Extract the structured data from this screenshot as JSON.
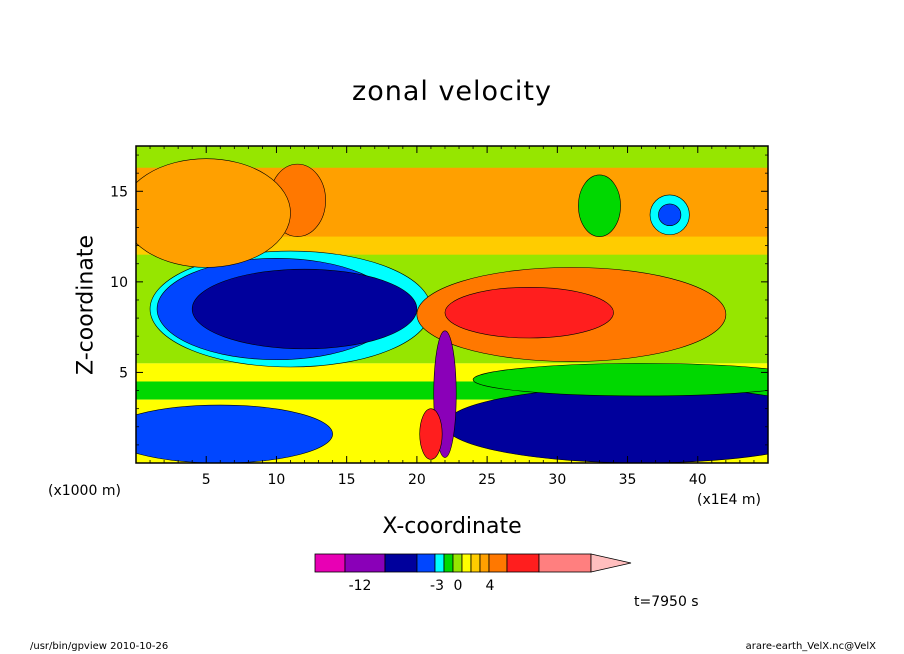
{
  "chart_data": {
    "type": "heatmap",
    "title": "zonal velocity",
    "xlabel": "X-coordinate",
    "ylabel": "Z-coordinate",
    "x_units": "(x1E4 m)",
    "y_units": "(x1000 m)",
    "xlim": [
      0,
      45
    ],
    "ylim": [
      0,
      17.5
    ],
    "x_ticks": [
      5,
      10,
      15,
      20,
      25,
      30,
      35,
      40
    ],
    "x_tick_labels": [
      "5",
      "10",
      "15",
      "20",
      "25",
      "30",
      "35",
      "40"
    ],
    "y_ticks": [
      5,
      10,
      15
    ],
    "y_tick_labels": [
      "5",
      "10",
      "15"
    ],
    "time_label": "t=7950 s",
    "colorbar": {
      "colors": [
        "#e800b4",
        "#8a00b8",
        "#00009c",
        "#0046ff",
        "#00ffff",
        "#00d800",
        "#96e600",
        "#ffff00",
        "#ffcc00",
        "#ffa000",
        "#ff7800",
        "#ff1e1e",
        "#ff7f7f",
        "#ffbebe"
      ],
      "tick_labels": [
        "-12",
        "-3",
        "0",
        "4"
      ]
    },
    "regions": [
      {
        "level": 4,
        "cx": 11,
        "cy": 8.5,
        "rx": 10,
        "ry": 3.2
      },
      {
        "level": 3,
        "cx": 10,
        "cy": 8.5,
        "rx": 8.5,
        "ry": 2.8
      },
      {
        "level": 2,
        "cx": 12,
        "cy": 8.5,
        "rx": 8,
        "ry": 2.2
      },
      {
        "level": 2,
        "cx": 36,
        "cy": 2.1,
        "rx": 14,
        "ry": 2.1
      },
      {
        "level": 3,
        "cx": 6,
        "cy": 1.6,
        "rx": 8,
        "ry": 1.6
      },
      {
        "level": 5,
        "cx": 36,
        "cy": 4.6,
        "rx": 12,
        "ry": 0.9
      },
      {
        "level": 10,
        "cx": 31,
        "cy": 8.2,
        "rx": 11,
        "ry": 2.6
      },
      {
        "level": 11,
        "cx": 28,
        "cy": 8.3,
        "rx": 6,
        "ry": 1.4
      },
      {
        "level": 10,
        "cx": 5,
        "cy": 13.8,
        "rx": 4,
        "ry": 2.0
      },
      {
        "level": 10,
        "cx": 11.5,
        "cy": 14.5,
        "rx": 2,
        "ry": 2.0
      },
      {
        "level": 9,
        "cx": 5,
        "cy": 13.8,
        "rx": 6,
        "ry": 3.0
      },
      {
        "level": 4,
        "cx": 38,
        "cy": 13.7,
        "rx": 1.4,
        "ry": 1.1
      },
      {
        "level": 3,
        "cx": 38,
        "cy": 13.7,
        "rx": 0.8,
        "ry": 0.6
      },
      {
        "level": 5,
        "cx": 33,
        "cy": 14.2,
        "rx": 1.5,
        "ry": 1.7
      },
      {
        "level": 1,
        "cx": 22,
        "cy": 3.8,
        "rx": 0.8,
        "ry": 3.5
      },
      {
        "level": 11,
        "cx": 21.0,
        "cy": 1.6,
        "rx": 0.8,
        "ry": 1.4
      }
    ]
  },
  "footer": {
    "left": "/usr/bin/gpview   2010-10-26",
    "right": "arare-earth_VelX.nc@VelX"
  }
}
